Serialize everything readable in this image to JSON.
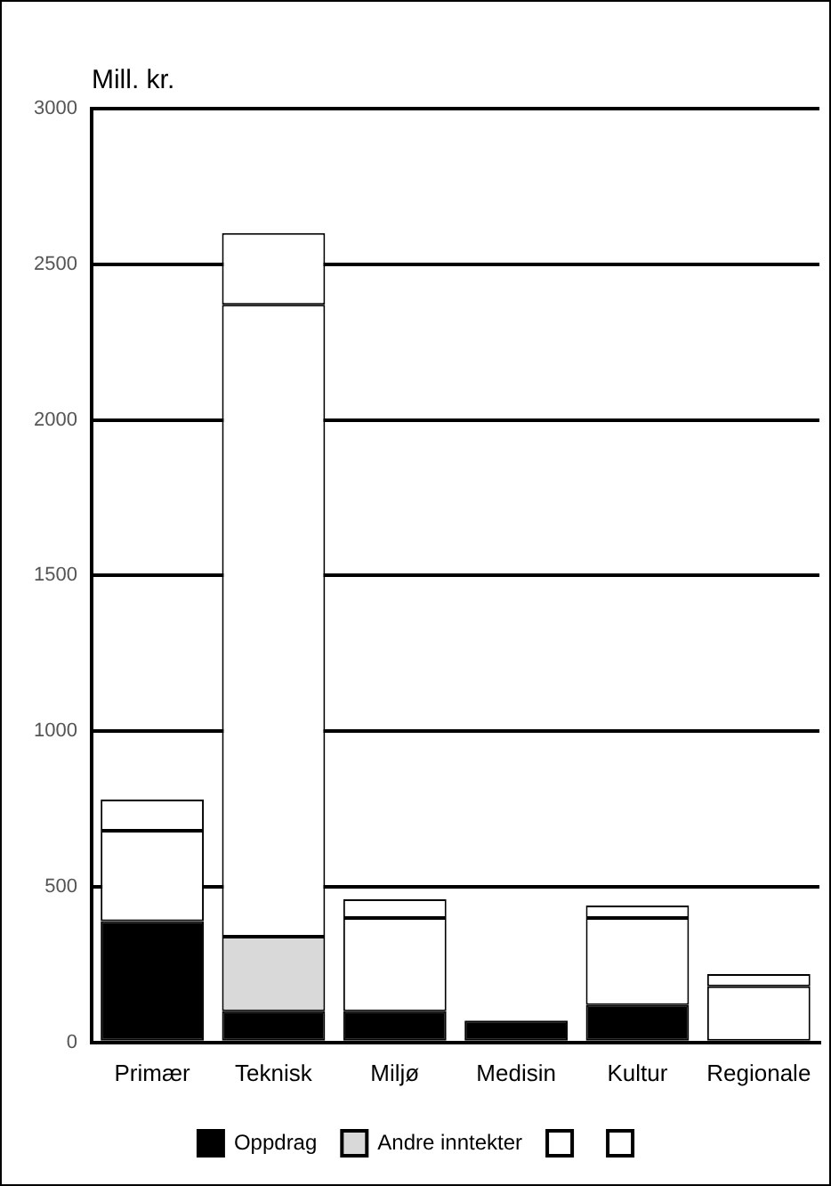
{
  "chart_data": {
    "type": "bar",
    "ylabel": "Mill. kr.",
    "categories": [
      "Primær",
      "Teknisk",
      "Miljø",
      "Medisin",
      "Kultur",
      "Regionale"
    ],
    "stacked": true,
    "series": [
      {
        "name": "Oppdrag",
        "color": "#000000",
        "values": [
          390,
          100,
          100,
          70,
          120,
          0
        ]
      },
      {
        "name": "Andre inntekter",
        "color": "#d9d9d9",
        "values": [
          0,
          240,
          0,
          0,
          0,
          0
        ]
      },
      {
        "color": "#ffffff",
        "values": [
          290,
          2030,
          300,
          0,
          280,
          180
        ]
      },
      {
        "color": "#ffffff",
        "values": [
          100,
          230,
          60,
          0,
          40,
          40
        ]
      }
    ],
    "ylim": [
      0,
      3000
    ],
    "yticks": [
      0,
      500,
      1000,
      1500,
      2000,
      2500,
      3000
    ],
    "grid": "y",
    "legend": "bottom"
  }
}
